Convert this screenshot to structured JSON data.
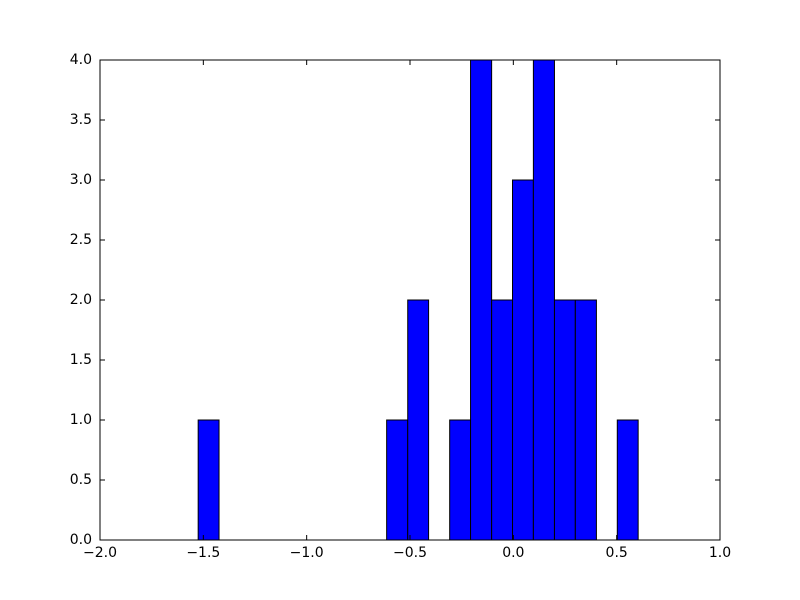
{
  "chart_data": {
    "type": "histogram",
    "bins": [
      -1.525,
      -1.424,
      -1.322,
      -1.221,
      -1.119,
      -1.018,
      -0.917,
      -0.815,
      -0.714,
      -0.613,
      -0.511,
      -0.41,
      -0.308,
      -0.207,
      -0.105,
      -0.004,
      0.097,
      0.199,
      0.3,
      0.402,
      0.503,
      0.604
    ],
    "values": [
      1,
      0,
      0,
      0,
      0,
      0,
      0,
      0,
      0,
      1,
      2,
      0,
      1,
      4,
      2,
      3,
      4,
      2,
      2,
      0,
      1
    ],
    "color": "#0000ff",
    "xlim": [
      -2,
      1
    ],
    "xticks": [
      {
        "value": -2,
        "label": "−2.0"
      },
      {
        "value": -1.5,
        "label": "−1.5"
      },
      {
        "value": -1,
        "label": "−1.0"
      },
      {
        "value": -0.5,
        "label": "−0.5"
      },
      {
        "value": 0,
        "label": "0.0"
      },
      0.5,
      {
        "value": 1,
        "label": "1.0"
      }
    ],
    "ylim": [
      0,
      4
    ],
    "yticks": [
      {
        "value": 0,
        "label": "0.0"
      },
      0.5,
      {
        "value": 1,
        "label": "1.0"
      },
      1.5,
      {
        "value": 2,
        "label": "2.0"
      },
      2.5,
      {
        "value": 3,
        "label": "3.0"
      },
      3.5,
      {
        "value": 4,
        "label": "4.0"
      }
    ],
    "grid": false
  }
}
